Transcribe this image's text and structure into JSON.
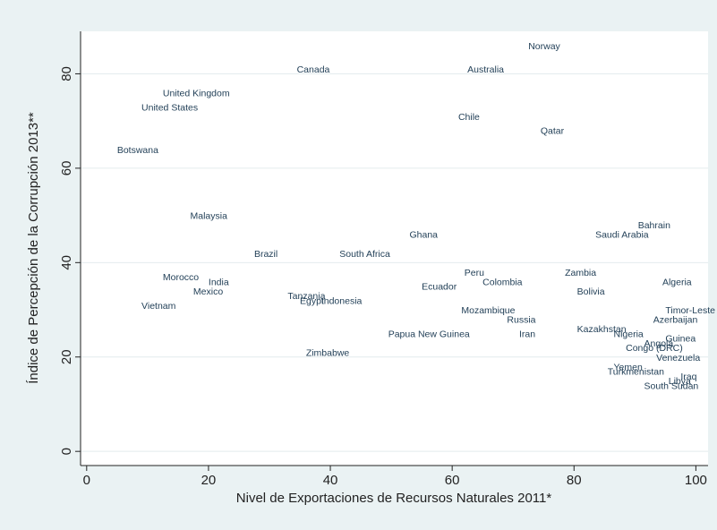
{
  "chart_data": {
    "type": "scatter",
    "marker": "label",
    "xlabel": "Nivel de Exportaciones de Recursos Naturales 2011*",
    "ylabel": "Índice de Percepción de la Corrupción 2013**",
    "xlim": [
      -1,
      102
    ],
    "ylim": [
      -3,
      89
    ],
    "xticks": [
      0,
      20,
      40,
      60,
      80,
      100
    ],
    "yticks": [
      0,
      20,
      40,
      60,
      80
    ],
    "grid": "horizontal",
    "colors": {
      "background": "#eaf2f3",
      "plot_background": "#ffffff",
      "grid": "#e4ecee",
      "labels": "#1f3d55",
      "axis": "#222222"
    },
    "points": [
      {
        "label": "Norway",
        "x": 72.5,
        "y": 86
      },
      {
        "label": "Canada",
        "x": 34.5,
        "y": 81
      },
      {
        "label": "Australia",
        "x": 62.5,
        "y": 81
      },
      {
        "label": "United Kingdom",
        "x": 12.5,
        "y": 76
      },
      {
        "label": "United States",
        "x": 9,
        "y": 73
      },
      {
        "label": "Chile",
        "x": 61,
        "y": 71
      },
      {
        "label": "Qatar",
        "x": 74.5,
        "y": 68
      },
      {
        "label": "Botswana",
        "x": 5,
        "y": 64
      },
      {
        "label": "Malaysia",
        "x": 17,
        "y": 50
      },
      {
        "label": "Bahrain",
        "x": 90.5,
        "y": 48
      },
      {
        "label": "Ghana",
        "x": 53,
        "y": 46
      },
      {
        "label": "Saudi Arabia",
        "x": 83.5,
        "y": 46
      },
      {
        "label": "Brazil",
        "x": 27.5,
        "y": 42
      },
      {
        "label": "South Africa",
        "x": 41.5,
        "y": 42
      },
      {
        "label": "Peru",
        "x": 62,
        "y": 38
      },
      {
        "label": "Zambia",
        "x": 78.5,
        "y": 38
      },
      {
        "label": "Morocco",
        "x": 12.5,
        "y": 37
      },
      {
        "label": "India",
        "x": 20,
        "y": 36
      },
      {
        "label": "Colombia",
        "x": 65,
        "y": 36
      },
      {
        "label": "Algeria",
        "x": 94.5,
        "y": 36
      },
      {
        "label": "Ecuador",
        "x": 55,
        "y": 35
      },
      {
        "label": "Mexico",
        "x": 17.5,
        "y": 34
      },
      {
        "label": "Bolivia",
        "x": 80.5,
        "y": 34
      },
      {
        "label": "Tanzania",
        "x": 33,
        "y": 33
      },
      {
        "label": "Indonesia",
        "x": 38.5,
        "y": 32
      },
      {
        "label": "Egypt",
        "x": 35,
        "y": 32
      },
      {
        "label": "Vietnam",
        "x": 9,
        "y": 31
      },
      {
        "label": "Mozambique",
        "x": 61.5,
        "y": 30
      },
      {
        "label": "Timor-Leste",
        "x": 95,
        "y": 30
      },
      {
        "label": "Russia",
        "x": 69,
        "y": 28
      },
      {
        "label": "Azerbaijan",
        "x": 93,
        "y": 28
      },
      {
        "label": "Kazakhstan",
        "x": 80.5,
        "y": 26
      },
      {
        "label": "Papua New Guinea",
        "x": 49.5,
        "y": 25
      },
      {
        "label": "Iran",
        "x": 71,
        "y": 25
      },
      {
        "label": "Nigeria",
        "x": 86.5,
        "y": 25
      },
      {
        "label": "Guinea",
        "x": 95,
        "y": 24
      },
      {
        "label": "Angola",
        "x": 91.5,
        "y": 23
      },
      {
        "label": "Congo (DRC)",
        "x": 88.5,
        "y": 22
      },
      {
        "label": "Zimbabwe",
        "x": 36,
        "y": 21
      },
      {
        "label": "Venezuela",
        "x": 93.5,
        "y": 20
      },
      {
        "label": "Yemen",
        "x": 86.5,
        "y": 18
      },
      {
        "label": "Turkmenistan",
        "x": 85.5,
        "y": 17
      },
      {
        "label": "Iraq",
        "x": 97.5,
        "y": 16
      },
      {
        "label": "Libya",
        "x": 95.5,
        "y": 15
      },
      {
        "label": "South Sudan",
        "x": 91.5,
        "y": 14
      }
    ]
  }
}
